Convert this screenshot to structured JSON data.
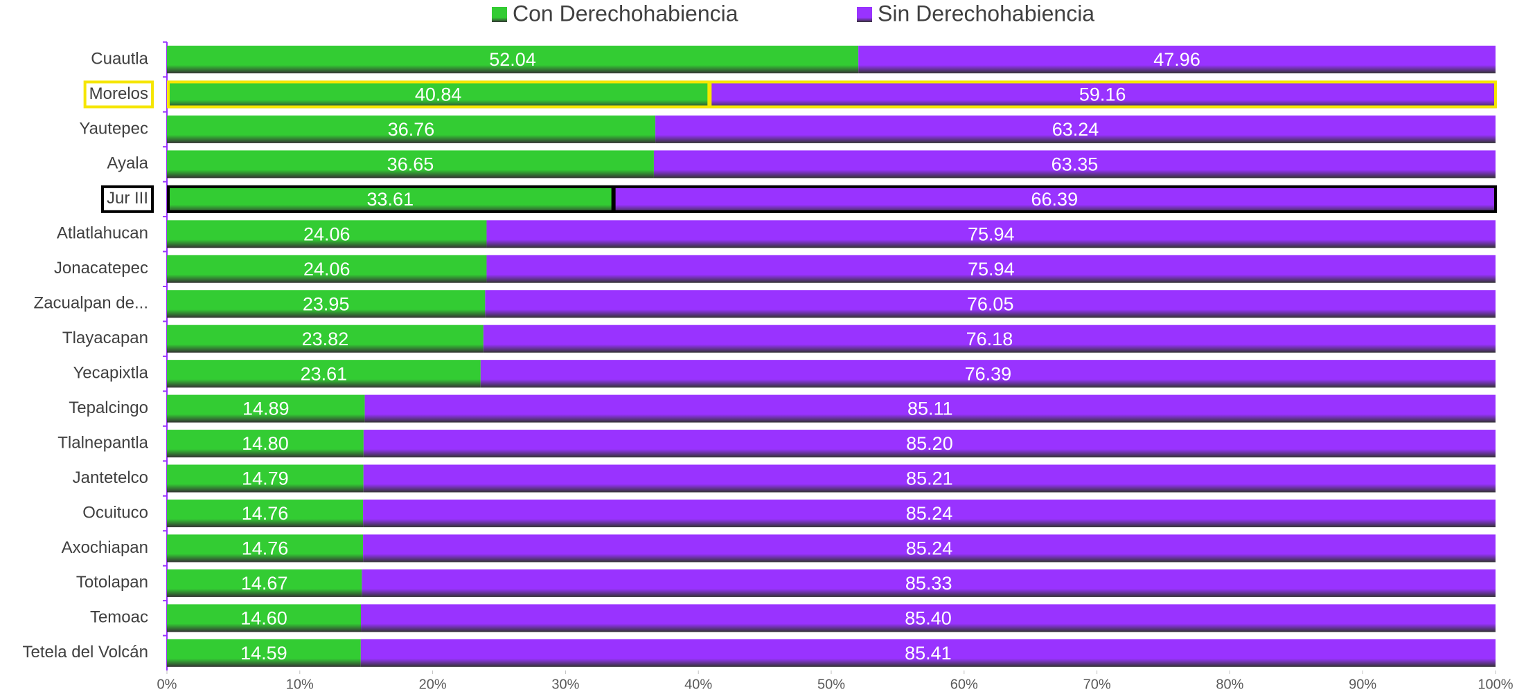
{
  "chart_data": {
    "type": "stacked-bar-horizontal",
    "categories": [
      "Cuautla",
      "Morelos",
      "Yautepec",
      "Ayala",
      "Jur III",
      "Atlatlahucan",
      "Jonacatepec",
      "Zacualpan de...",
      "Tlayacapan",
      "Yecapixtla",
      "Tepalcingo",
      "Tlalnepantla",
      "Jantetelco",
      "Ocuituco",
      "Axochiapan",
      "Totolapan",
      "Temoac",
      "Tetela del Volcán"
    ],
    "series": [
      {
        "name": "Con Derechohabiencia",
        "color": "#33cc33",
        "values": [
          52.04,
          40.84,
          36.76,
          36.65,
          33.61,
          24.06,
          24.06,
          23.95,
          23.82,
          23.61,
          14.89,
          14.8,
          14.79,
          14.76,
          14.76,
          14.67,
          14.6,
          14.59
        ],
        "value_labels": [
          "52.04",
          "40.84",
          "36.76",
          "36.65",
          "33.61",
          "24.06",
          "24.06",
          "23.95",
          "23.82",
          "23.61",
          "14.89",
          "14.80",
          "14.79",
          "14.76",
          "14.76",
          "14.67",
          "14.60",
          "14.59"
        ]
      },
      {
        "name": "Sin Derechohabiencia",
        "color": "#9933ff",
        "values": [
          47.96,
          59.16,
          63.24,
          63.35,
          66.39,
          75.94,
          75.94,
          76.05,
          76.18,
          76.39,
          85.11,
          85.2,
          85.21,
          85.24,
          85.24,
          85.33,
          85.4,
          85.41
        ],
        "value_labels": [
          "47.96",
          "59.16",
          "63.24",
          "63.35",
          "66.39",
          "75.94",
          "75.94",
          "76.05",
          "76.18",
          "76.39",
          "85.11",
          "85.20",
          "85.21",
          "85.24",
          "85.24",
          "85.33",
          "85.40",
          "85.41"
        ]
      }
    ],
    "xlim": [
      0,
      100
    ],
    "xticks": [
      {
        "value": 0,
        "label": "0%"
      },
      {
        "value": 10,
        "label": "10%"
      },
      {
        "value": 20,
        "label": "20%"
      },
      {
        "value": 30,
        "label": "30%"
      },
      {
        "value": 40,
        "label": "40%"
      },
      {
        "value": 50,
        "label": "50%"
      },
      {
        "value": 60,
        "label": "60%"
      },
      {
        "value": 70,
        "label": "70%"
      },
      {
        "value": 80,
        "label": "80%"
      },
      {
        "value": 90,
        "label": "90%"
      },
      {
        "value": 100,
        "label": "100%"
      }
    ],
    "legend": "top",
    "highlights": [
      {
        "index": 1,
        "color": "#f5e600"
      },
      {
        "index": 4,
        "color": "#000000"
      }
    ]
  }
}
